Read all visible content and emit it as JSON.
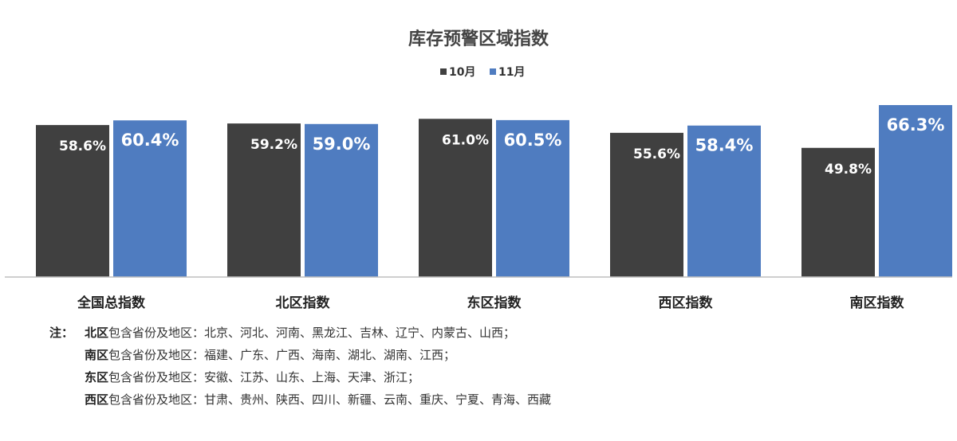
{
  "chart_data": {
    "type": "bar",
    "title": "库存预警区域指数",
    "categories": [
      "全国总指数",
      "北区指数",
      "东区指数",
      "西区指数",
      "南区指数"
    ],
    "series": [
      {
        "name": "10月",
        "values": [
          58.6,
          59.2,
          61.0,
          55.6,
          49.8
        ],
        "labels": [
          "58.6%",
          "59.2%",
          "61.0%",
          "55.6%",
          "49.8%"
        ],
        "color": "#404040"
      },
      {
        "name": "11月",
        "values": [
          60.4,
          59.0,
          60.5,
          58.4,
          66.3
        ],
        "labels": [
          "60.4%",
          "59.0%",
          "60.5%",
          "58.4%",
          "66.3%"
        ],
        "color": "#4f7cc0"
      }
    ],
    "ylim": [
      0,
      66.3
    ],
    "grid": false,
    "legend_position": "top-center",
    "data_labels": true
  },
  "notes": {
    "prefix": "注：",
    "lines": [
      {
        "region": "北区",
        "text": "包含省份及地区：北京、河北、河南、黑龙江、吉林、辽宁、内蒙古、山西；"
      },
      {
        "region": "南区",
        "text": "包含省份及地区：福建、广东、广西、海南、湖北、湖南、江西；"
      },
      {
        "region": "东区",
        "text": "包含省份及地区：安徽、江苏、山东、上海、天津、浙江；"
      },
      {
        "region": "西区",
        "text": "包含省份及地区：甘肃、贵州、陕西、四川、新疆、云南、重庆、宁夏、青海、西藏"
      }
    ]
  }
}
